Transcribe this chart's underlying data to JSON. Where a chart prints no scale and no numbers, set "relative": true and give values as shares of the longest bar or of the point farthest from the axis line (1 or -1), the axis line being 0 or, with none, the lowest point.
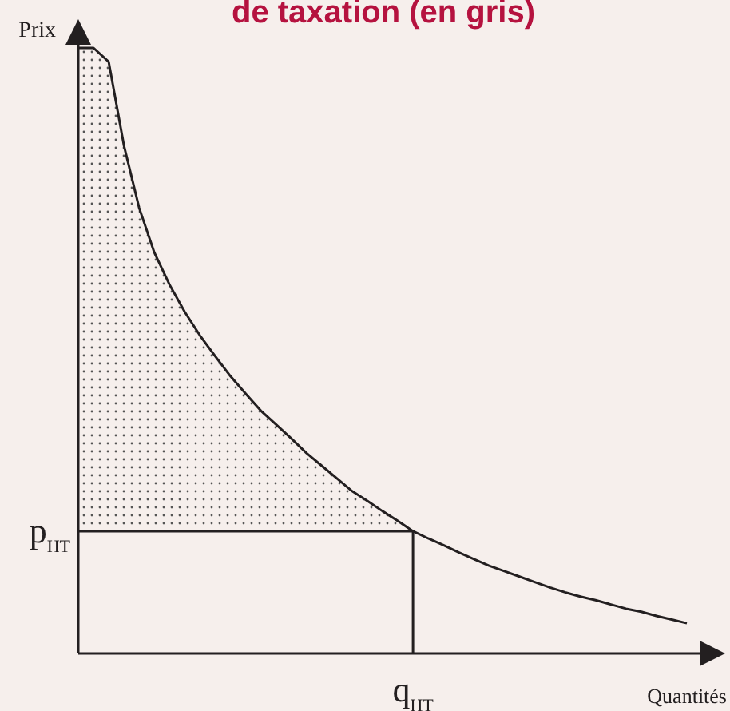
{
  "chart_data": {
    "type": "line",
    "title": "de taxation (en gris)",
    "xlabel": "Quantités",
    "ylabel": "Prix",
    "relative": true,
    "categories": [
      null,
      null,
      null,
      null,
      null,
      null,
      null,
      null,
      null,
      null,
      null,
      null,
      null,
      null,
      null,
      null,
      null,
      null,
      null,
      null,
      null,
      null,
      null,
      null,
      null,
      null,
      null,
      null,
      null,
      null,
      null,
      null,
      null,
      null,
      null,
      null,
      null,
      null,
      null,
      null,
      null
    ],
    "series": [
      {
        "color": "#231f20",
        "values": [
          1,
          1,
          0.977,
          0.839,
          0.736,
          0.662,
          0.609,
          0.564,
          0.525,
          0.491,
          0.458,
          0.429,
          0.401,
          0.378,
          0.355,
          0.331,
          0.31,
          0.289,
          0.268,
          0.252,
          0.235,
          0.219,
          0.202,
          0.19,
          0.179,
          0.167,
          0.156,
          0.145,
          0.136,
          0.127,
          0.118,
          0.109,
          0.101,
          0.094,
          0.088,
          0.081,
          0.074,
          0.069,
          0.062,
          0.056,
          0.05
        ],
        "lower": [
          0.202,
          0.202,
          0.202,
          0.202,
          0.202,
          0.202,
          0.202,
          0.202,
          0.202,
          0.202,
          0.202,
          0.202,
          0.202,
          0.202,
          0.202,
          0.202,
          0.202,
          0.202,
          0.202,
          0.202,
          0.202,
          0.202,
          0.202,
          null,
          null,
          null,
          null,
          null,
          null,
          null,
          null,
          null,
          null,
          null,
          null,
          null,
          null,
          null,
          null,
          null,
          null
        ],
        "upper": [
          1,
          1,
          0.977,
          0.839,
          0.736,
          0.662,
          0.609,
          0.564,
          0.525,
          0.491,
          0.458,
          0.429,
          0.401,
          0.378,
          0.355,
          0.331,
          0.31,
          0.289,
          0.268,
          0.252,
          0.235,
          0.219,
          0.202,
          null,
          null,
          null,
          null,
          null,
          null,
          null,
          null,
          null,
          null,
          null,
          null,
          null,
          null,
          null,
          null,
          null,
          null
        ]
      }
    ],
    "ref_lines": [
      {
        "axis": "y",
        "value": 0.202,
        "label": "p$_{HT}$"
      }
    ],
    "annotations": [
      "q$_{HT}$"
    ],
    "marker": "none",
    "line_style": "solid"
  }
}
